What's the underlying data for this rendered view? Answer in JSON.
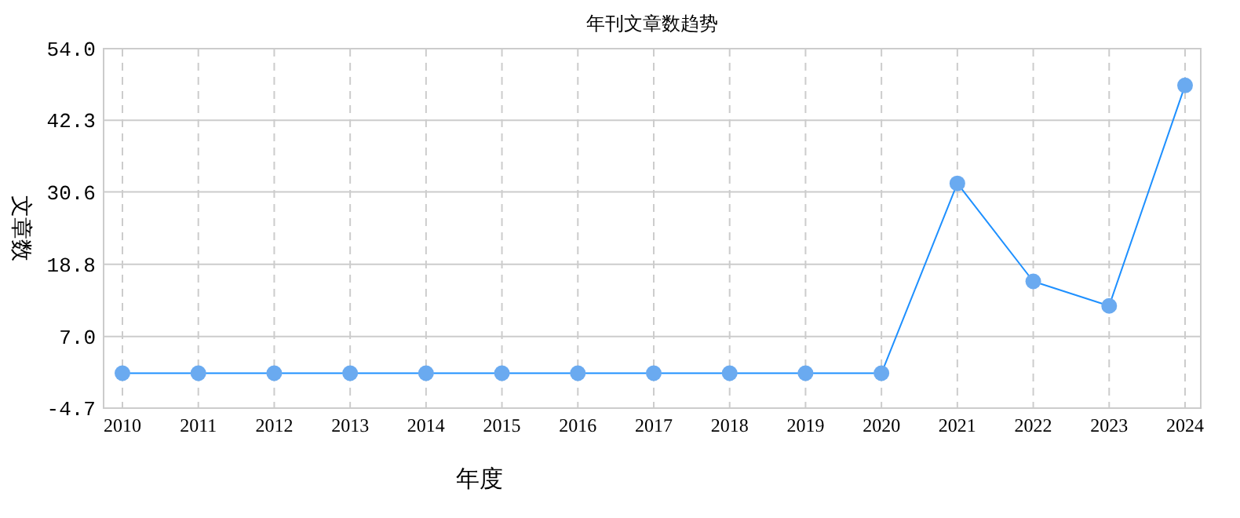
{
  "chart_data": {
    "type": "line",
    "title": "年刊文章数趋势",
    "xlabel": "年度",
    "ylabel": "文章数",
    "categories": [
      "2010",
      "2011",
      "2012",
      "2013",
      "2014",
      "2015",
      "2016",
      "2017",
      "2018",
      "2019",
      "2020",
      "2021",
      "2022",
      "2023",
      "2024"
    ],
    "series": [
      {
        "color": "#1e90ff",
        "values": [
          1,
          1,
          1,
          1,
          1,
          1,
          1,
          1,
          1,
          1,
          1,
          32,
          16,
          12,
          48
        ]
      }
    ],
    "ylim": [
      -4.7,
      54
    ],
    "yticks": [
      {
        "value": -4.7,
        "label": "-4.7"
      },
      {
        "value": 7,
        "label": "7.0"
      },
      {
        "value": 18.8,
        "label": "18.8"
      },
      {
        "value": 30.6,
        "label": "30.6"
      },
      {
        "value": 42.3,
        "label": "42.3"
      },
      {
        "value": 54,
        "label": "54.0"
      }
    ],
    "grid": true,
    "marker": "circle",
    "line_style": "solid"
  }
}
